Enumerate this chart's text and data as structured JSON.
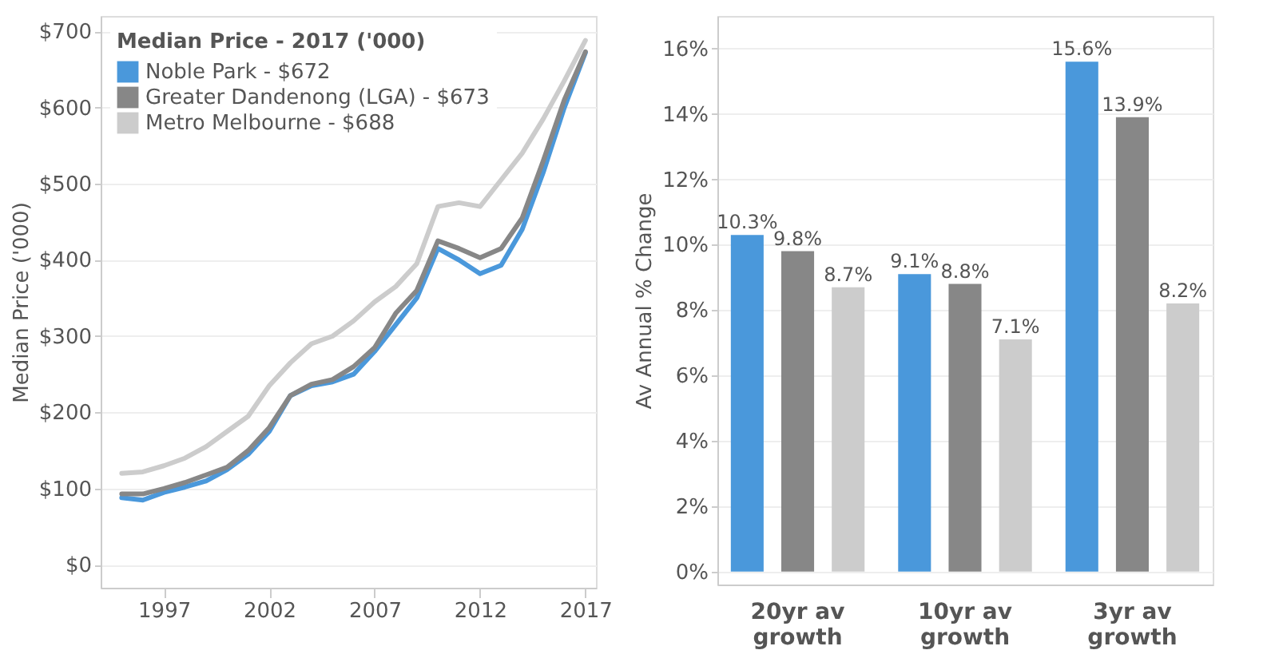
{
  "chart_data": [
    {
      "type": "line",
      "ylabel": "Median Price ('000)",
      "legend_title": "Median Price  - 2017 ('000)",
      "legend": "top left",
      "grid": "y",
      "marker": "none",
      "line_style": "solid",
      "x": [
        1995,
        1996,
        1997,
        1998,
        1999,
        2000,
        2001,
        2002,
        2003,
        2004,
        2005,
        2006,
        2007,
        2008,
        2009,
        2010,
        2011,
        2012,
        2013,
        2014,
        2015,
        2016,
        2017
      ],
      "xlim": [
        1994,
        2017.5
      ],
      "xticks": [
        1997,
        2002,
        2007,
        2012,
        2017
      ],
      "ylim": [
        -30,
        720
      ],
      "yticks": [
        {
          "value": 0,
          "label": "$0"
        },
        {
          "value": 100,
          "label": "$100"
        },
        {
          "value": 200,
          "label": "$200"
        },
        {
          "value": 300,
          "label": "$300"
        },
        {
          "value": 400,
          "label": "$400"
        },
        {
          "value": 500,
          "label": "$500"
        },
        {
          "value": 600,
          "label": "$600"
        },
        {
          "value": 700,
          "label": "$700"
        }
      ],
      "series": [
        {
          "name": "Noble Park - $672",
          "color": "#4a98db",
          "values": [
            88,
            85,
            95,
            102,
            110,
            125,
            145,
            175,
            222,
            235,
            240,
            250,
            280,
            315,
            350,
            415,
            400,
            382,
            393,
            440,
            515,
            600,
            672
          ]
        },
        {
          "name": "Greater Dandenong (LGA) - $673",
          "color": "#878787",
          "values": [
            93,
            93,
            100,
            108,
            118,
            128,
            150,
            180,
            222,
            237,
            243,
            260,
            285,
            330,
            360,
            425,
            415,
            403,
            415,
            455,
            530,
            610,
            673
          ]
        },
        {
          "name": "Metro Melbourne - $688",
          "color": "#cccccc",
          "values": [
            120,
            122,
            130,
            140,
            155,
            175,
            195,
            235,
            265,
            290,
            300,
            320,
            345,
            365,
            395,
            470,
            475,
            470,
            505,
            540,
            585,
            635,
            688
          ]
        }
      ]
    },
    {
      "type": "bar",
      "ylabel": "Av Annual % Change",
      "grid": "y",
      "categories": [
        "20yr av growth",
        "10yr av growth",
        "3yr av growth"
      ],
      "ylim": [
        -0.4,
        17
      ],
      "yticks": [
        {
          "value": 0,
          "label": "0%"
        },
        {
          "value": 2,
          "label": "2%"
        },
        {
          "value": 4,
          "label": "4%"
        },
        {
          "value": 6,
          "label": "6%"
        },
        {
          "value": 8,
          "label": "8%"
        },
        {
          "value": 10,
          "label": "10%"
        },
        {
          "value": 12,
          "label": "12%"
        },
        {
          "value": 14,
          "label": "14%"
        },
        {
          "value": 16,
          "label": "16%"
        }
      ],
      "series": [
        {
          "color": "#4a98db",
          "values": [
            10.3,
            9.1,
            15.6
          ],
          "value_labels": [
            "10.3%",
            "9.1%",
            "15.6%"
          ]
        },
        {
          "color": "#878787",
          "values": [
            9.8,
            8.8,
            13.9
          ],
          "value_labels": [
            "9.8%",
            "8.8%",
            "13.9%"
          ]
        },
        {
          "color": "#cccccc",
          "values": [
            8.7,
            7.1,
            8.2
          ],
          "value_labels": [
            "8.7%",
            "7.1%",
            "8.2%"
          ]
        }
      ]
    }
  ]
}
